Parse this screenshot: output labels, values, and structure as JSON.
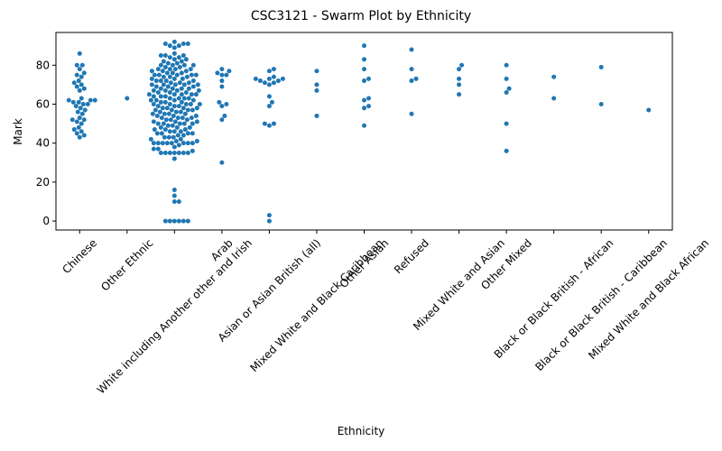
{
  "chart_data": {
    "type": "swarm",
    "title": "CSC3121 - Swarm Plot by Ethnicity",
    "x_label": "Ethnicity",
    "y_label": "Mark",
    "color": "#1f77b4",
    "categories": [
      "Chinese",
      "Other Ethnic",
      "White including Another other and Irish",
      "Arab",
      "Asian or Asian British (all)",
      "Mixed White and Black Caribbean",
      "Other Asian",
      "Refused",
      "Mixed White and Asian",
      "Other Mixed",
      "Black or Black British - African",
      "Black or Black British - Caribbean",
      "Mixed White and Black African"
    ],
    "values": [
      [
        86,
        80,
        80,
        78,
        76,
        75,
        74,
        72,
        71,
        70,
        69,
        68,
        67,
        63,
        62,
        62,
        62,
        61,
        61,
        60,
        60,
        59,
        58,
        57,
        56,
        55,
        53,
        52,
        52,
        51,
        50,
        48,
        47,
        46,
        45,
        44,
        43
      ],
      [
        63
      ],
      [
        0,
        0,
        0,
        0,
        0,
        0,
        10,
        10,
        13,
        16,
        32,
        35,
        35,
        35,
        35,
        35,
        35,
        35,
        36,
        37,
        37,
        38,
        39,
        40,
        40,
        40,
        40,
        40,
        40,
        40,
        40,
        41,
        41,
        42,
        42,
        43,
        43,
        43,
        44,
        44,
        45,
        45,
        45,
        45,
        46,
        46,
        46,
        47,
        47,
        47,
        48,
        48,
        48,
        49,
        49,
        50,
        50,
        50,
        50,
        50,
        51,
        51,
        51,
        52,
        52,
        52,
        53,
        53,
        53,
        53,
        54,
        54,
        54,
        55,
        55,
        55,
        55,
        56,
        56,
        56,
        57,
        57,
        57,
        57,
        58,
        58,
        58,
        58,
        59,
        59,
        59,
        60,
        60,
        60,
        60,
        60,
        61,
        61,
        61,
        62,
        62,
        62,
        62,
        63,
        63,
        63,
        63,
        64,
        64,
        64,
        65,
        65,
        65,
        65,
        65,
        66,
        66,
        66,
        67,
        67,
        67,
        67,
        68,
        68,
        68,
        68,
        69,
        69,
        69,
        70,
        70,
        70,
        70,
        70,
        71,
        71,
        71,
        72,
        72,
        72,
        72,
        73,
        73,
        73,
        74,
        74,
        74,
        75,
        75,
        75,
        75,
        75,
        76,
        76,
        76,
        77,
        77,
        77,
        78,
        78,
        78,
        78,
        79,
        79,
        80,
        80,
        80,
        80,
        81,
        81,
        82,
        82,
        83,
        83,
        84,
        84,
        85,
        85,
        85,
        86,
        89,
        90,
        90,
        91,
        91,
        91,
        92
      ],
      [
        78,
        77,
        76,
        75,
        75,
        72,
        69,
        61,
        60,
        59,
        54,
        52,
        30
      ],
      [
        78,
        77,
        74,
        73,
        73,
        73,
        72,
        72,
        71,
        71,
        70,
        64,
        61,
        59,
        50,
        50,
        49,
        3,
        0
      ],
      [
        77,
        70,
        67,
        54
      ],
      [
        90,
        83,
        78,
        73,
        72,
        63,
        62,
        59,
        58,
        49
      ],
      [
        88,
        78,
        73,
        72,
        55
      ],
      [
        80,
        78,
        73,
        70,
        65
      ],
      [
        80,
        73,
        68,
        66,
        50,
        36
      ],
      [
        74,
        63
      ],
      [
        79,
        60
      ],
      [
        57
      ]
    ],
    "ylim": [
      -4.6,
      96.8
    ],
    "yticks": [
      0,
      20,
      40,
      60,
      80
    ]
  }
}
